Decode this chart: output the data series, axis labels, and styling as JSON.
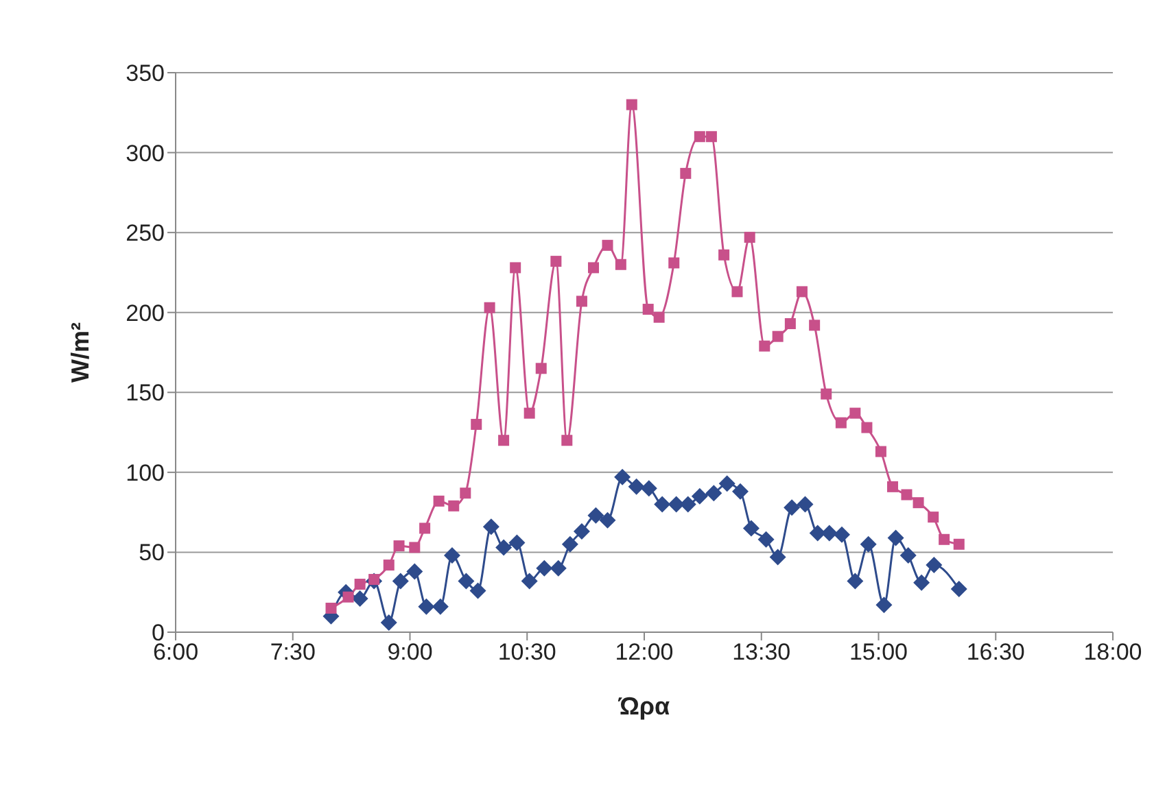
{
  "chart_data": {
    "type": "line",
    "xlabel": "Ώρα",
    "ylabel": "W/m²",
    "xlim": [
      6,
      18
    ],
    "xticks": [
      {
        "value": 6,
        "label": "6:00"
      },
      {
        "value": 7.5,
        "label": "7:30"
      },
      {
        "value": 9,
        "label": "9:00"
      },
      {
        "value": 10.5,
        "label": "10:30"
      },
      {
        "value": 12,
        "label": "12:00"
      },
      {
        "value": 13.5,
        "label": "13:30"
      },
      {
        "value": 15,
        "label": "15:00"
      },
      {
        "value": 16.5,
        "label": "16:30"
      },
      {
        "value": 18,
        "label": "18:00"
      }
    ],
    "ylim": [
      0,
      350
    ],
    "yticks": [
      0,
      50,
      100,
      150,
      200,
      250,
      300,
      350
    ],
    "grid": "y",
    "legend": false,
    "line_style": "solid",
    "series": [
      {
        "color": "#c8508a",
        "marker": "square",
        "x": [
          7.99,
          8.21,
          8.36,
          8.54,
          8.73,
          8.86,
          9.06,
          9.19,
          9.37,
          9.56,
          9.71,
          9.85,
          10.02,
          10.2,
          10.35,
          10.53,
          10.68,
          10.87,
          11.01,
          11.2,
          11.35,
          11.53,
          11.7,
          11.84,
          12.05,
          12.19,
          12.38,
          12.53,
          12.71,
          12.86,
          13.02,
          13.19,
          13.35,
          13.54,
          13.71,
          13.87,
          14.02,
          14.18,
          14.33,
          14.52,
          14.7,
          14.85,
          15.03,
          15.18,
          15.36,
          15.51,
          15.7,
          15.84,
          16.03
        ],
        "values": [
          15,
          22,
          30,
          33,
          42,
          54,
          53,
          65,
          82,
          79,
          87,
          130,
          203,
          120,
          228,
          137,
          165,
          232,
          120,
          207,
          228,
          242,
          230,
          330,
          202,
          197,
          231,
          287,
          310,
          310,
          236,
          213,
          247,
          179,
          185,
          193,
          213,
          192,
          149,
          131,
          137,
          128,
          113,
          91,
          86,
          81,
          72,
          58,
          55
        ]
      },
      {
        "color": "#2e4b8c",
        "marker": "diamond",
        "x": [
          7.99,
          8.18,
          8.36,
          8.54,
          8.73,
          8.88,
          9.06,
          9.21,
          9.39,
          9.54,
          9.72,
          9.87,
          10.04,
          10.2,
          10.37,
          10.53,
          10.72,
          10.9,
          11.05,
          11.2,
          11.38,
          11.53,
          11.72,
          11.9,
          12.06,
          12.23,
          12.41,
          12.56,
          12.71,
          12.89,
          13.06,
          13.23,
          13.37,
          13.56,
          13.71,
          13.89,
          14.06,
          14.22,
          14.37,
          14.53,
          14.7,
          14.87,
          15.07,
          15.22,
          15.38,
          15.55,
          15.71,
          16.03
        ],
        "values": [
          10,
          25,
          21,
          32,
          6,
          32,
          38,
          16,
          16,
          48,
          32,
          26,
          66,
          53,
          56,
          32,
          40,
          40,
          55,
          63,
          73,
          70,
          97,
          91,
          90,
          80,
          80,
          80,
          85,
          87,
          93,
          88,
          65,
          58,
          47,
          78,
          80,
          62,
          62,
          61,
          32,
          55,
          17,
          59,
          48,
          31,
          42,
          27
        ]
      }
    ]
  }
}
